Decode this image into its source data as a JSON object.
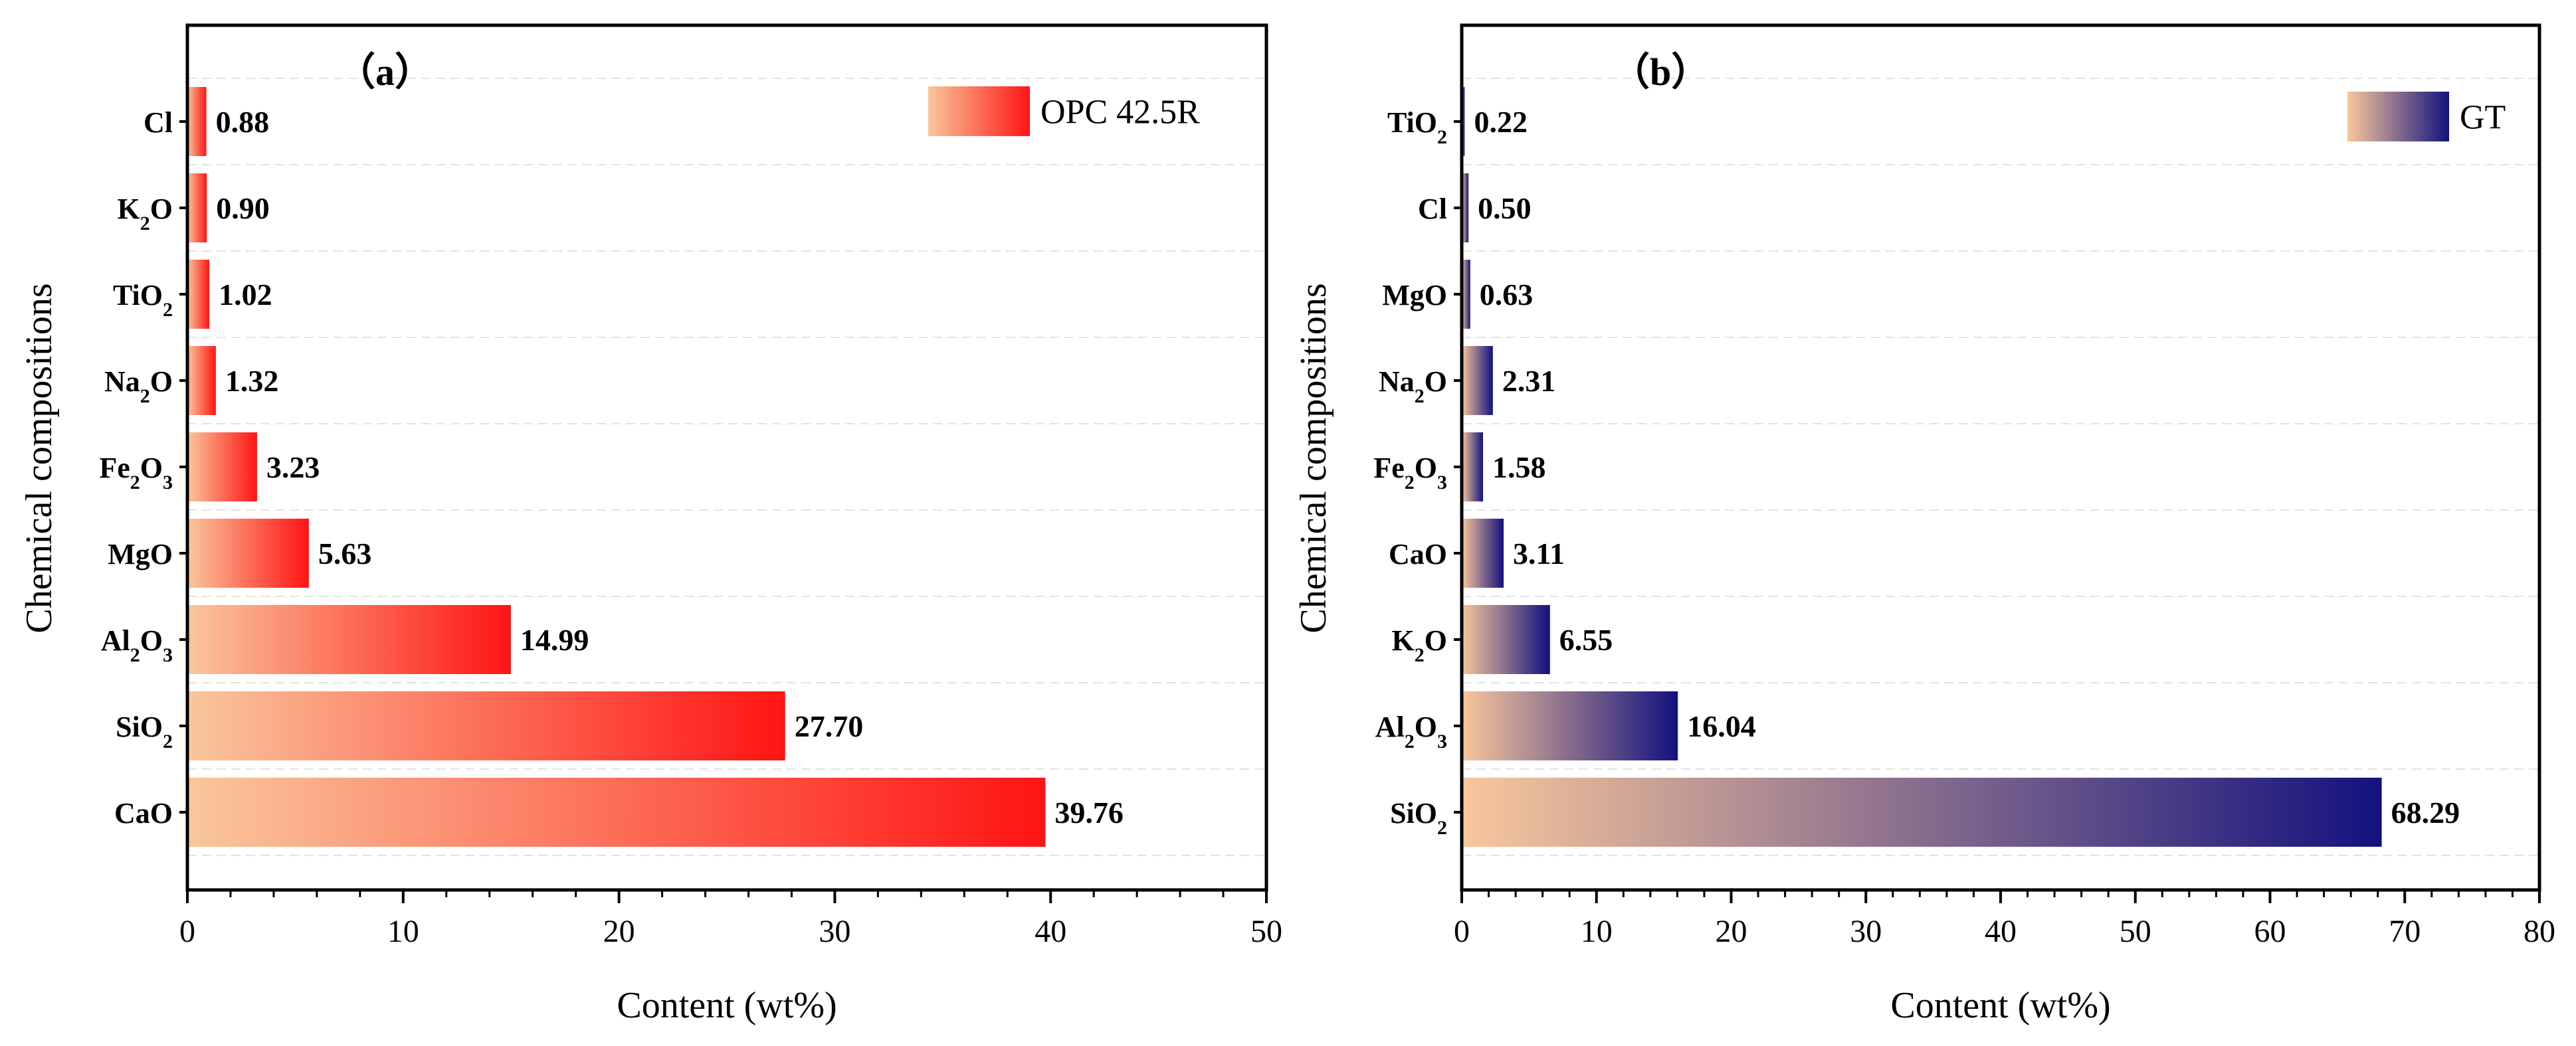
{
  "chart_data": [
    {
      "type": "bar",
      "orientation": "horizontal",
      "panel_label": "（a）",
      "title": "",
      "xlabel": "Content (wt%)",
      "ylabel": "Chemical compositions",
      "xlim": [
        0,
        50
      ],
      "x_ticks": [
        "0",
        "10",
        "20",
        "30",
        "40",
        "50"
      ],
      "legend": {
        "label": "OPC 42.5R",
        "position": "top-right"
      },
      "gradient": {
        "from": "#f9c79c",
        "to": "#ff1414"
      },
      "categories": [
        {
          "base": "CaO",
          "sub": "",
          "after": ""
        },
        {
          "base": "SiO",
          "sub": "2",
          "after": ""
        },
        {
          "base": "Al",
          "sub": "2",
          "after": "O",
          "sub2": "3"
        },
        {
          "base": "MgO",
          "sub": "",
          "after": ""
        },
        {
          "base": "Fe",
          "sub": "2",
          "after": "O",
          "sub2": "3"
        },
        {
          "base": "Na",
          "sub": "2",
          "after": "O"
        },
        {
          "base": "TiO",
          "sub": "2",
          "after": ""
        },
        {
          "base": "K",
          "sub": "2",
          "after": "O"
        },
        {
          "base": "Cl",
          "sub": "",
          "after": ""
        }
      ],
      "values": [
        39.76,
        27.7,
        14.99,
        5.63,
        3.23,
        1.32,
        1.02,
        0.9,
        0.88
      ],
      "value_labels": [
        "39.76",
        "27.70",
        "14.99",
        "5.63",
        "3.23",
        "1.32",
        "1.02",
        "0.90",
        "0.88"
      ],
      "grid": "horizontal dashed"
    },
    {
      "type": "bar",
      "orientation": "horizontal",
      "panel_label": "（b）",
      "title": "",
      "xlabel": "Content (wt%)",
      "ylabel": "Chemical compositions",
      "xlim": [
        0,
        80
      ],
      "x_ticks": [
        "0",
        "10",
        "20",
        "30",
        "40",
        "50",
        "60",
        "70",
        "80"
      ],
      "legend": {
        "label": "GT",
        "position": "top-right"
      },
      "gradient": {
        "from": "#f9c79c",
        "to": "#13127e"
      },
      "categories": [
        {
          "base": "SiO",
          "sub": "2",
          "after": ""
        },
        {
          "base": "Al",
          "sub": "2",
          "after": "O",
          "sub2": "3"
        },
        {
          "base": "K",
          "sub": "2",
          "after": "O"
        },
        {
          "base": "CaO",
          "sub": "",
          "after": ""
        },
        {
          "base": "Fe",
          "sub": "2",
          "after": "O",
          "sub2": "3"
        },
        {
          "base": "Na",
          "sub": "2",
          "after": "O"
        },
        {
          "base": "MgO",
          "sub": "",
          "after": ""
        },
        {
          "base": "Cl",
          "sub": "",
          "after": ""
        },
        {
          "base": "TiO",
          "sub": "2",
          "after": ""
        }
      ],
      "values": [
        68.29,
        16.04,
        6.55,
        3.11,
        1.58,
        2.31,
        0.63,
        0.5,
        0.22
      ],
      "value_labels": [
        "68.29",
        "16.04",
        "6.55",
        "3.11",
        "1.58",
        "2.31",
        "0.63",
        "0.50",
        "0.22"
      ],
      "grid": "horizontal dashed"
    }
  ]
}
